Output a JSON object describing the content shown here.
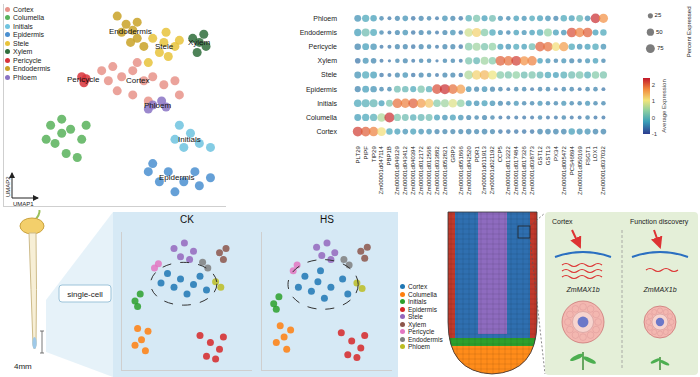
{
  "chart_data": [
    {
      "type": "scatter",
      "xlabel": "UMAP1",
      "ylabel": "UMAP2",
      "xlim": [
        0,
        100
      ],
      "ylim": [
        0,
        100
      ],
      "tick_labels": false,
      "grid": false,
      "legend": "top left",
      "marker": "circle",
      "annotations": [
        "Endodermis",
        "Stele",
        "Xylem",
        "Pericycle",
        "Cortex",
        "Phloem",
        "Initials",
        "Epidermis"
      ],
      "series": [
        {
          "name": "Cortex",
          "color": "#e7938a",
          "x": [
            44,
            49,
            53,
            58,
            63,
            67,
            72,
            77,
            51,
            58,
            65,
            47,
            60,
            79
          ],
          "y": [
            67,
            69,
            64,
            67,
            62,
            64,
            60,
            62,
            57,
            55,
            52,
            62,
            71,
            55
          ]
        },
        {
          "name": "Columella",
          "color": "#58b25b",
          "x": [
            21,
            26,
            30,
            35,
            23,
            28,
            33,
            19,
            37,
            26
          ],
          "y": [
            40,
            43,
            38,
            33,
            31,
            26,
            24,
            33,
            40,
            36
          ]
        },
        {
          "name": "Initials",
          "color": "#6fc3df",
          "x": [
            79,
            84,
            88,
            77,
            93,
            81
          ],
          "y": [
            40,
            36,
            31,
            33,
            29,
            29
          ]
        },
        {
          "name": "Epidermis",
          "color": "#4a8fd0",
          "x": [
            67,
            74,
            81,
            88,
            70,
            77,
            86,
            93,
            65
          ],
          "y": [
            21,
            17,
            12,
            10,
            12,
            7,
            17,
            14,
            17
          ]
        },
        {
          "name": "Stele",
          "color": "#e8c33b",
          "x": [
            67,
            72,
            77,
            70,
            74,
            79,
            65,
            73
          ],
          "y": [
            83,
            81,
            79,
            76,
            74,
            82,
            71,
            86
          ]
        },
        {
          "name": "Xylem",
          "color": "#2f6d3b",
          "x": [
            85,
            88,
            91,
            87,
            90
          ],
          "y": [
            83,
            81,
            79,
            76,
            85
          ]
        },
        {
          "name": "Pericycle",
          "color": "#d8333a",
          "x": [
            35,
            37,
            36
          ],
          "y": [
            64,
            63,
            61
          ]
        },
        {
          "name": "Endodermis",
          "color": "#c9a227",
          "x": [
            51,
            55,
            58,
            60,
            57,
            53,
            60,
            63
          ],
          "y": [
            94,
            90,
            87,
            83,
            81,
            86,
            91,
            79
          ]
        },
        {
          "name": "Phloem",
          "color": "#8a73c4",
          "x": [
            67,
            71,
            73,
            65
          ],
          "y": [
            50,
            52,
            49,
            48
          ]
        }
      ]
    },
    {
      "type": "dot",
      "grid": false,
      "categories": [
        "PLT29",
        "PIPF",
        "TIP29",
        "Zm00001d047114",
        "PBP1B",
        "Zm00001d049129",
        "Zm00001d043412",
        "Zm00001d040394",
        "Zm00001d012172",
        "Zm00001d012568",
        "Zm00001d033882",
        "Zm00001d052821",
        "GRP3",
        "Zm00001d051866",
        "Zm00001d042520",
        "PDR1",
        "Zm00001d011913",
        "Zm00001d021192",
        "CCP5",
        "Zm00001d013222",
        "Zm00001d017484",
        "Zm00001d017326",
        "Zm00001d038773",
        "GST12",
        "GST13",
        "PX34",
        "Zm00001d005472",
        "PCS46894",
        "Zm00001d050169",
        "FSGT1",
        "LOX1",
        "Zm00001d037032"
      ],
      "rows": [
        "Phloem",
        "Endodermis",
        "Pericycle",
        "Xylem",
        "Stele",
        "Epidermis",
        "Initials",
        "Columella",
        "Cortex"
      ],
      "expression": [
        [
          -0.4,
          -0.2,
          -0.3,
          -0.5,
          -0.6,
          -0.5,
          -0.4,
          -0.6,
          -0.5,
          -0.5,
          -0.6,
          -0.4,
          -0.5,
          -0.6,
          -0.1,
          0.2,
          -0.3,
          0.1,
          -0.4,
          -0.5,
          -0.3,
          -0.4,
          -0.2,
          -0.3,
          -0.4,
          -0.5,
          -0.2,
          -0.3,
          0.0,
          -0.4,
          2.3,
          1.7
        ],
        [
          -0.3,
          0.1,
          -0.2,
          -0.5,
          -0.6,
          -0.5,
          -0.4,
          -0.6,
          -0.5,
          -0.5,
          -0.6,
          -0.5,
          -0.4,
          -0.6,
          0.8,
          1.2,
          0.3,
          -0.2,
          -0.4,
          -0.5,
          -0.3,
          -0.4,
          -0.3,
          -0.2,
          0.4,
          -0.3,
          -0.4,
          2.1,
          1.8,
          2.0,
          -0.3,
          -0.2
        ],
        [
          -0.5,
          -0.3,
          -0.4,
          -0.6,
          -0.6,
          -0.5,
          -0.5,
          -0.6,
          -0.5,
          -0.5,
          -0.6,
          -0.5,
          -0.5,
          -0.6,
          0.3,
          0.5,
          0.2,
          0.4,
          -0.3,
          -0.4,
          -0.2,
          -0.3,
          0.1,
          2.0,
          1.9,
          1.1,
          1.6,
          -0.2,
          -0.4,
          -0.3,
          -0.2,
          -0.4
        ],
        [
          -0.6,
          -0.4,
          -0.5,
          -0.6,
          -0.6,
          -0.5,
          -0.5,
          -0.6,
          -0.5,
          -0.5,
          -0.6,
          -0.5,
          -0.5,
          -0.6,
          0.2,
          0.0,
          0.5,
          0.3,
          2.0,
          1.9,
          2.2,
          1.7,
          1.8,
          -0.3,
          -0.4,
          -0.5,
          -0.4,
          -0.5,
          -0.5,
          -0.4,
          -0.3,
          -0.5
        ],
        [
          -0.4,
          -0.2,
          -0.3,
          -0.6,
          -0.6,
          -0.5,
          -0.4,
          -0.6,
          -0.5,
          -0.5,
          -0.6,
          -0.5,
          -0.5,
          -0.6,
          0.6,
          1.2,
          1.4,
          1.0,
          0.3,
          0.2,
          0.4,
          0.1,
          0.2,
          0.0,
          -0.2,
          -0.3,
          -0.1,
          0.1,
          0.2,
          -0.1,
          0.3,
          0.2
        ],
        [
          -0.5,
          -0.3,
          -0.4,
          -0.5,
          -0.5,
          0.1,
          0.0,
          -0.2,
          0.2,
          -0.1,
          2.1,
          2.3,
          1.9,
          1.6,
          -0.4,
          -0.5,
          -0.4,
          -0.5,
          -0.5,
          -0.6,
          -0.5,
          -0.5,
          -0.6,
          -0.5,
          -0.5,
          -0.6,
          -0.5,
          -0.5,
          -0.6,
          -0.5,
          -0.5,
          -0.6
        ],
        [
          -0.2,
          -0.1,
          0.0,
          -0.3,
          0.2,
          1.9,
          1.8,
          2.0,
          1.6,
          1.3,
          0.3,
          0.5,
          0.9,
          0.4,
          -0.3,
          -0.4,
          -0.3,
          -0.4,
          -0.5,
          -0.5,
          -0.4,
          -0.5,
          -0.5,
          -0.4,
          -0.5,
          -0.5,
          -0.4,
          -0.5,
          -0.5,
          -0.4,
          -0.5,
          -0.5
        ],
        [
          -0.3,
          -0.2,
          -0.1,
          0.6,
          2.3,
          0.2,
          0.1,
          -0.1,
          0.0,
          0.1,
          -0.3,
          -0.4,
          -0.3,
          -0.4,
          -0.5,
          -0.5,
          -0.5,
          -0.5,
          -0.6,
          -0.6,
          -0.6,
          -0.6,
          -0.6,
          -0.5,
          -0.6,
          -0.6,
          -0.5,
          -0.6,
          -0.6,
          -0.5,
          -0.6,
          -0.6
        ],
        [
          2.2,
          2.0,
          1.8,
          1.1,
          -0.2,
          -0.3,
          -0.4,
          -0.3,
          -0.4,
          -0.4,
          -0.5,
          -0.5,
          -0.5,
          -0.5,
          -0.5,
          -0.5,
          -0.5,
          -0.5,
          -0.6,
          -0.6,
          -0.6,
          -0.6,
          -0.6,
          -0.5,
          -0.5,
          -0.5,
          -0.5,
          -0.3,
          -0.4,
          -0.4,
          -0.5,
          -0.5
        ]
      ],
      "percent": [
        [
          45,
          50,
          40,
          20,
          15,
          25,
          30,
          20,
          25,
          20,
          15,
          30,
          25,
          20,
          40,
          50,
          35,
          45,
          25,
          20,
          30,
          25,
          30,
          35,
          30,
          25,
          40,
          35,
          45,
          30,
          90,
          80
        ],
        [
          50,
          60,
          45,
          20,
          15,
          25,
          30,
          20,
          25,
          20,
          15,
          25,
          30,
          20,
          70,
          80,
          55,
          40,
          25,
          20,
          30,
          25,
          30,
          40,
          60,
          35,
          30,
          90,
          85,
          88,
          35,
          40
        ],
        [
          40,
          45,
          40,
          15,
          15,
          25,
          25,
          20,
          25,
          20,
          15,
          25,
          25,
          20,
          55,
          60,
          50,
          55,
          35,
          30,
          35,
          30,
          45,
          88,
          85,
          70,
          80,
          40,
          30,
          35,
          40,
          30
        ],
        [
          30,
          35,
          30,
          15,
          10,
          20,
          25,
          15,
          20,
          20,
          10,
          20,
          20,
          15,
          50,
          45,
          60,
          55,
          90,
          85,
          92,
          80,
          85,
          30,
          25,
          20,
          25,
          25,
          20,
          25,
          30,
          20
        ],
        [
          45,
          50,
          45,
          20,
          15,
          25,
          30,
          20,
          25,
          20,
          15,
          25,
          25,
          20,
          75,
          85,
          88,
          80,
          55,
          50,
          55,
          45,
          50,
          45,
          40,
          35,
          45,
          50,
          55,
          45,
          55,
          50
        ],
        [
          35,
          45,
          40,
          20,
          20,
          45,
          40,
          35,
          50,
          40,
          90,
          95,
          88,
          80,
          30,
          25,
          30,
          25,
          20,
          15,
          20,
          20,
          15,
          20,
          20,
          15,
          20,
          20,
          15,
          20,
          20,
          15
        ],
        [
          55,
          60,
          60,
          35,
          45,
          88,
          85,
          90,
          80,
          75,
          55,
          60,
          70,
          55,
          35,
          30,
          35,
          30,
          25,
          20,
          25,
          20,
          20,
          25,
          20,
          20,
          25,
          20,
          20,
          25,
          20,
          20
        ],
        [
          45,
          50,
          50,
          70,
          95,
          50,
          45,
          40,
          45,
          45,
          35,
          30,
          35,
          30,
          25,
          20,
          25,
          20,
          15,
          15,
          15,
          15,
          15,
          20,
          15,
          15,
          20,
          15,
          15,
          20,
          15,
          15
        ],
        [
          92,
          90,
          85,
          75,
          40,
          35,
          30,
          35,
          30,
          30,
          25,
          25,
          25,
          25,
          30,
          25,
          30,
          25,
          20,
          20,
          20,
          20,
          20,
          30,
          30,
          30,
          30,
          40,
          35,
          35,
          30,
          30
        ]
      ],
      "size_legend": {
        "title": "Percent Expressed",
        "values": [
          25,
          50,
          75
        ]
      },
      "colorbar": {
        "title": "Average Expression",
        "range": [
          -1,
          2.4
        ],
        "ticks": [
          -1,
          0,
          1,
          2
        ]
      }
    },
    {
      "type": "scatter",
      "title": "CK",
      "xlim": [
        0,
        100
      ],
      "ylim": [
        0,
        100
      ],
      "tick_labels": false,
      "grid": false,
      "marker": "circle",
      "series": [
        {
          "name": "Cortex",
          "color": "#1f77b4",
          "x": [
            35,
            45,
            55,
            40,
            50,
            60,
            30,
            65
          ],
          "y": [
            70,
            66,
            62,
            60,
            55,
            68,
            63,
            58
          ]
        },
        {
          "name": "Columella",
          "color": "#ff7f0e",
          "x": [
            12,
            15,
            20,
            10,
            18
          ],
          "y": [
            30,
            22,
            28,
            18,
            14
          ]
        },
        {
          "name": "Initials",
          "color": "#2ca02c",
          "x": [
            10,
            14,
            12
          ],
          "y": [
            50,
            55,
            46
          ]
        },
        {
          "name": "Epidermis",
          "color": "#d62728",
          "x": [
            60,
            68,
            75,
            65,
            78,
            72
          ],
          "y": [
            25,
            20,
            15,
            10,
            24,
            8
          ]
        },
        {
          "name": "Stele",
          "color": "#9467bd",
          "x": [
            40,
            48,
            55,
            45,
            52
          ],
          "y": [
            88,
            92,
            86,
            82,
            80
          ]
        },
        {
          "name": "Xylem",
          "color": "#8c564b",
          "x": [
            75,
            80,
            78
          ],
          "y": [
            85,
            88,
            80
          ]
        },
        {
          "name": "Pericycle",
          "color": "#e377c2",
          "x": [
            25,
            28
          ],
          "y": [
            74,
            77
          ]
        },
        {
          "name": "Endodermis",
          "color": "#7f7f7f",
          "x": [
            62,
            66
          ],
          "y": [
            78,
            74
          ]
        },
        {
          "name": "Phloem",
          "color": "#bcbd22",
          "x": [
            72,
            76
          ],
          "y": [
            64,
            60
          ]
        }
      ]
    },
    {
      "type": "scatter",
      "title": "HS",
      "xlim": [
        0,
        100
      ],
      "ylim": [
        0,
        100
      ],
      "tick_labels": false,
      "grid": false,
      "marker": "circle",
      "series": [
        {
          "name": "Cortex",
          "color": "#1f77b4",
          "x": [
            33,
            43,
            53,
            38,
            48,
            62,
            28,
            66,
            45
          ],
          "y": [
            68,
            64,
            60,
            57,
            52,
            66,
            60,
            55,
            72
          ]
        },
        {
          "name": "Columella",
          "color": "#ff7f0e",
          "x": [
            14,
            17,
            22,
            11,
            19
          ],
          "y": [
            32,
            24,
            29,
            20,
            15
          ]
        },
        {
          "name": "Initials",
          "color": "#2ca02c",
          "x": [
            9,
            13,
            11
          ],
          "y": [
            48,
            53,
            44
          ]
        },
        {
          "name": "Epidermis",
          "color": "#d62728",
          "x": [
            61,
            69,
            76,
            66,
            79,
            73
          ],
          "y": [
            27,
            21,
            16,
            11,
            25,
            9
          ]
        },
        {
          "name": "Stele",
          "color": "#9467bd",
          "x": [
            42,
            50,
            56,
            46,
            53
          ],
          "y": [
            89,
            92,
            85,
            83,
            80
          ]
        },
        {
          "name": "Xylem",
          "color": "#8c564b",
          "x": [
            76,
            81,
            79
          ],
          "y": [
            86,
            89,
            81
          ]
        },
        {
          "name": "Pericycle",
          "color": "#e377c2",
          "x": [
            24,
            27
          ],
          "y": [
            72,
            76
          ]
        },
        {
          "name": "Endodermis",
          "color": "#7f7f7f",
          "x": [
            63,
            67
          ],
          "y": [
            80,
            76
          ]
        },
        {
          "name": "Phloem",
          "color": "#bcbd22",
          "x": [
            73,
            77
          ],
          "y": [
            63,
            59
          ]
        }
      ]
    }
  ],
  "diagram": {
    "seedling": {
      "label": "4mm"
    },
    "method": "single-cell",
    "function_panel": {
      "left_title": "Cortex",
      "right_title": "Function discovery",
      "gene_labels": [
        "ZmMAX1b",
        "ZmMAX1b"
      ]
    }
  }
}
